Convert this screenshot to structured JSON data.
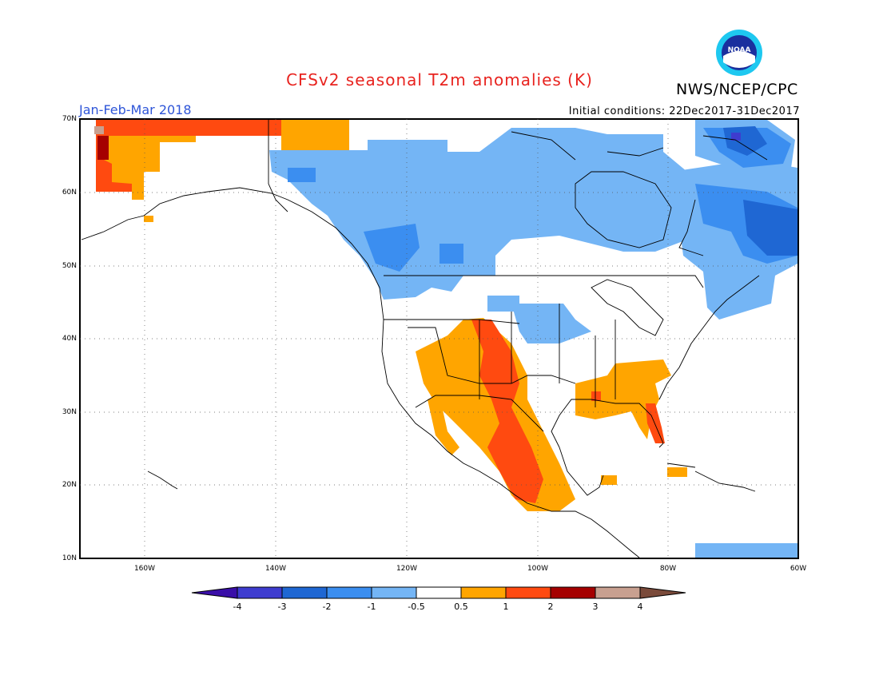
{
  "title": "CFSv2 seasonal T2m anomalies (K)",
  "agency": "NWS/NCEP/CPC",
  "logo_text": "NOAA",
  "period": "Jan-Feb-Mar 2018",
  "initial_conditions": "Initial conditions: 22Dec2017-31Dec2017",
  "map": {
    "extent": {
      "lon_min": -170,
      "lon_max": -60,
      "lat_min": 10,
      "lat_max": 70
    },
    "lat_ticks": [
      "70N",
      "60N",
      "50N",
      "40N",
      "30N",
      "20N",
      "10N"
    ],
    "lon_ticks": [
      "160W",
      "140W",
      "120W",
      "100W",
      "80W",
      "60W"
    ]
  },
  "colorbar": {
    "labels": [
      "-4",
      "-3",
      "-2",
      "-1",
      "-0.5",
      "0.5",
      "1",
      "2",
      "3",
      "4"
    ],
    "colors": [
      "#3a0fa8",
      "#3e3ccf",
      "#1f67d3",
      "#3b8ef0",
      "#74b5f5",
      "#ffffff",
      "#ffa500",
      "#ff4a10",
      "#a50000",
      "#c8a090",
      "#7a4a3a"
    ]
  }
}
